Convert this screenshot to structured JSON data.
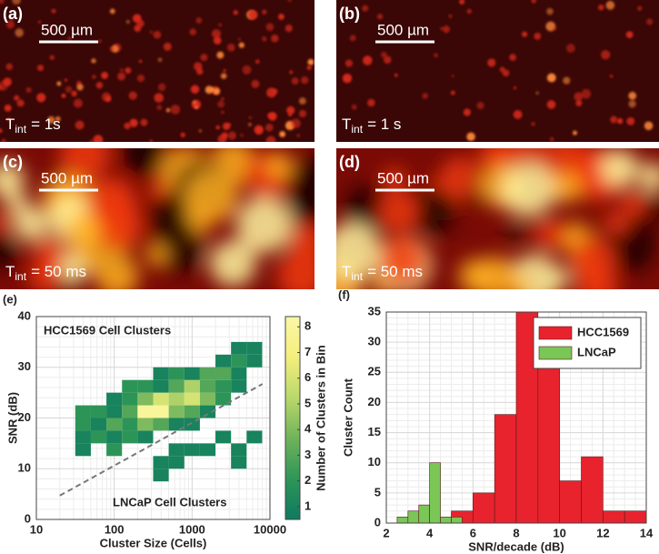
{
  "images": [
    {
      "panel": "(a)",
      "scale_bar": "500 µm",
      "t_symbol": "T",
      "t_subscript": "int",
      "t_value": "= 1s"
    },
    {
      "panel": "(b)",
      "scale_bar": "500 µm",
      "t_symbol": "T",
      "t_subscript": "int",
      "t_value": "= 1 s"
    },
    {
      "panel": "(c)",
      "scale_bar": "500 µm",
      "t_symbol": "T",
      "t_subscript": "int",
      "t_value": "= 50 ms"
    },
    {
      "panel": "(d)",
      "scale_bar": "500 µm",
      "t_symbol": "T",
      "t_subscript": "int",
      "t_value": "= 50 ms"
    }
  ],
  "chart_data": [
    {
      "type": "heatmap",
      "panel_label": "(e)",
      "x_label": "Cluster Size (Cells)",
      "y_label": "SNR (dB)",
      "colorbar_label": "Number of Clusters in Bin",
      "annotations": [
        "HCC1569 Cell Clusters",
        "LNCaP Cell Clusters"
      ],
      "log_x": true,
      "grid": true,
      "minor_grid": true,
      "xlim": [
        10,
        10000
      ],
      "xticks": [
        10,
        100,
        1000,
        10000
      ],
      "ylim": [
        0,
        40
      ],
      "yticks": [
        0,
        10,
        20,
        30,
        40
      ],
      "x_bins": [
        31.6,
        50.1,
        79.4,
        125.9,
        199.5,
        316.2,
        501.2,
        794.3,
        1258.9,
        1995.3,
        3162.3,
        5011.9,
        7943.3
      ],
      "y_bins": [
        5,
        7.5,
        10,
        12.5,
        15,
        17.5,
        20,
        22.5,
        25,
        27.5,
        30,
        32.5,
        35
      ],
      "counts": [
        [
          null,
          null,
          null,
          null,
          null,
          null,
          null,
          null,
          null,
          null,
          null,
          null
        ],
        [
          null,
          null,
          null,
          null,
          null,
          1,
          null,
          null,
          null,
          null,
          null,
          null
        ],
        [
          null,
          null,
          null,
          null,
          null,
          1,
          1,
          null,
          null,
          null,
          1,
          null
        ],
        [
          1,
          null,
          2,
          null,
          null,
          null,
          1,
          1,
          1,
          null,
          1,
          null
        ],
        [
          1,
          2,
          1,
          2,
          1,
          null,
          null,
          null,
          null,
          1,
          null,
          1
        ],
        [
          2,
          1,
          3,
          2,
          4,
          3,
          1,
          1,
          null,
          null,
          null,
          null
        ],
        [
          2,
          2,
          1,
          3,
          8,
          8,
          4,
          3,
          1,
          null,
          null,
          null
        ],
        [
          null,
          null,
          1,
          2,
          4,
          6,
          5,
          6,
          4,
          2,
          null,
          null
        ],
        [
          null,
          null,
          null,
          2,
          2,
          1,
          3,
          5,
          3,
          2,
          1,
          null
        ],
        [
          null,
          null,
          null,
          null,
          null,
          1,
          2,
          1,
          3,
          3,
          1,
          null
        ],
        [
          null,
          null,
          null,
          null,
          null,
          null,
          null,
          null,
          null,
          1,
          2,
          1
        ],
        [
          null,
          null,
          null,
          null,
          null,
          null,
          null,
          null,
          null,
          null,
          1,
          1
        ]
      ],
      "colormap": [
        "#0e7a60",
        "#2f9558",
        "#6fb35a",
        "#b9d86b",
        "#f4ef7c",
        "#fbf7a6"
      ],
      "clim": [
        0.5,
        8.4
      ],
      "cticks": [
        1,
        2,
        3,
        4,
        5,
        6,
        7,
        8
      ],
      "trend_line": {
        "x": [
          20,
          8000
        ],
        "y": [
          4.7,
          26.7
        ],
        "color": "#777777"
      }
    },
    {
      "type": "histogram",
      "panel_label": "(f)",
      "x_label": "SNR/decade (dB)",
      "y_label": "Cluster Count",
      "grid": true,
      "minor_grid": true,
      "legend": "upper right",
      "xlim": [
        2,
        14
      ],
      "xticks": [
        2,
        4,
        6,
        8,
        10,
        12,
        14
      ],
      "ylim": [
        0,
        35
      ],
      "yticks": [
        0,
        5,
        10,
        15,
        20,
        25,
        30,
        35
      ],
      "series": [
        {
          "name": "HCC1569",
          "color": "#e8232e",
          "bins": [
            5,
            6,
            7,
            8,
            9,
            10,
            11,
            12,
            13,
            14
          ],
          "values": [
            2,
            5,
            18,
            35,
            27,
            7,
            11,
            2,
            2
          ]
        },
        {
          "name": "LNCaP",
          "color": "#7ac657",
          "bins": [
            2.5,
            3,
            3.5,
            4,
            4.5,
            5,
            5.5
          ],
          "values": [
            1,
            2,
            3,
            10,
            1,
            1
          ]
        }
      ]
    }
  ]
}
